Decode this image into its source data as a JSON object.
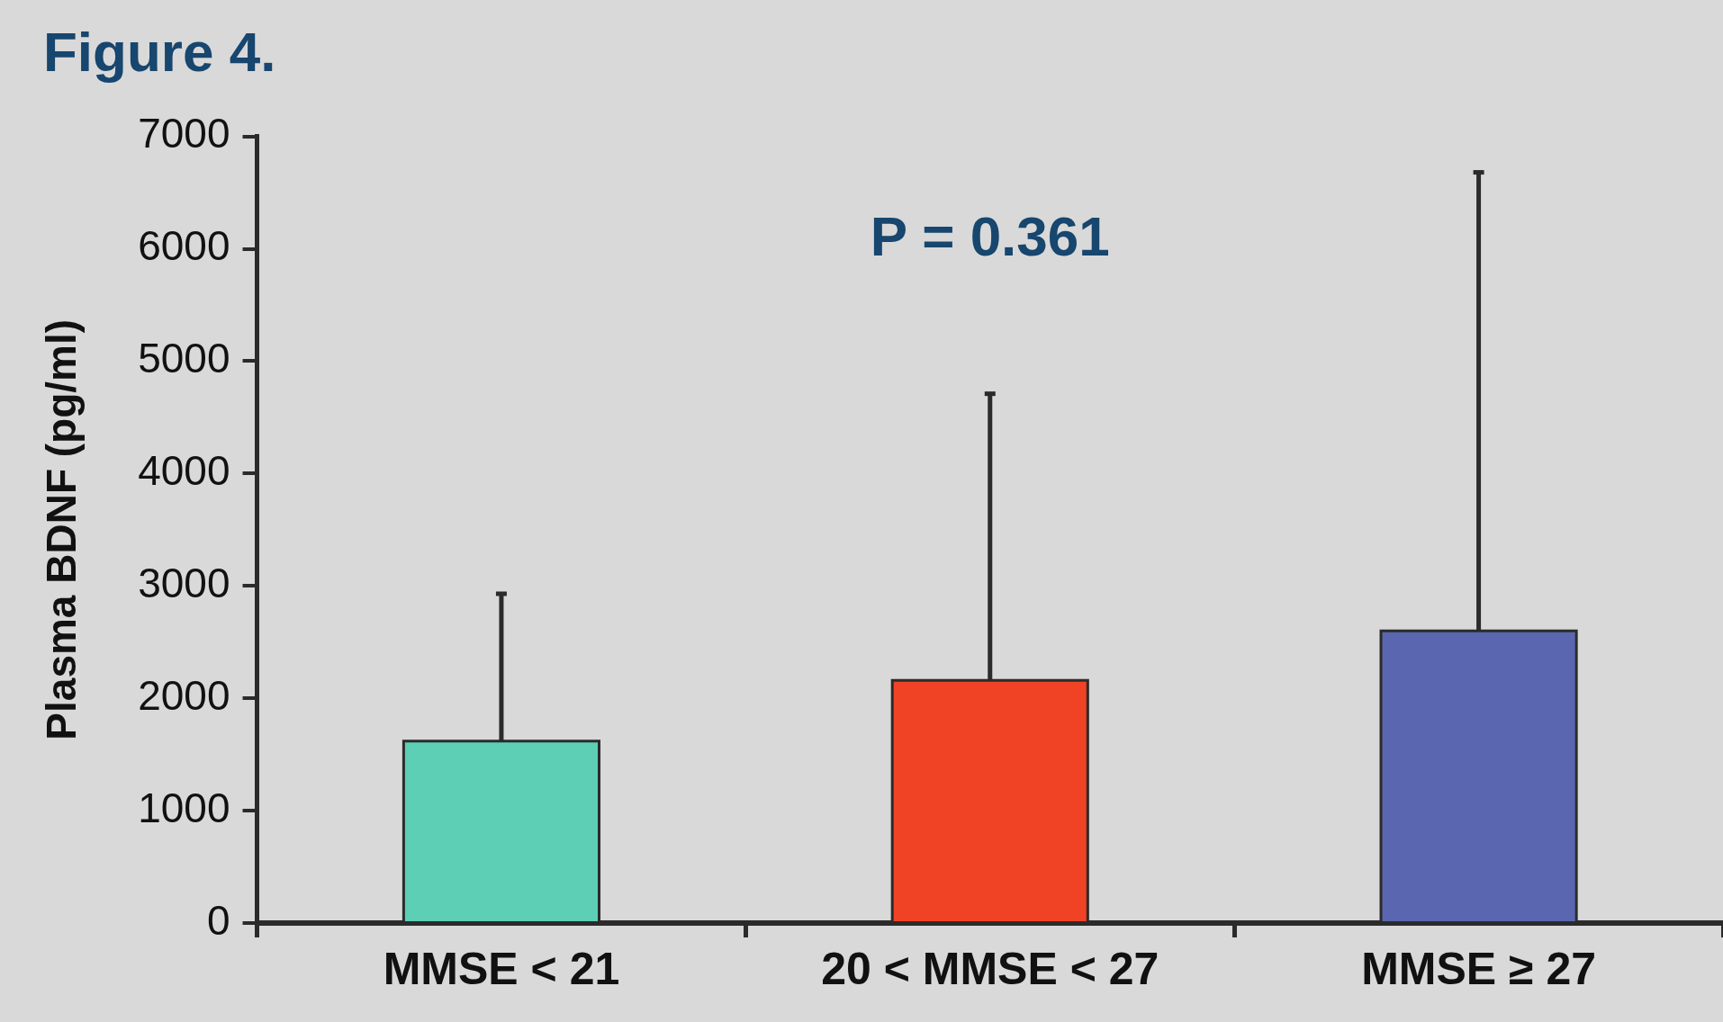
{
  "chart_data": {
    "type": "bar",
    "title": "Figure 4.",
    "ylabel": "Plasma BDNF (pg/ml)",
    "categories": [
      "MMSE < 21",
      "20 < MMSE < 27",
      "MMSE ≥ 27"
    ],
    "values": [
      1620,
      2160,
      2600
    ],
    "colors": [
      "#5ccfb4",
      "#f04326",
      "#5a67b0"
    ],
    "errors": [
      [
        1620,
        2930
      ],
      [
        2160,
        4710
      ],
      [
        2600,
        6680
      ]
    ],
    "ylim": [
      0,
      7000
    ],
    "yticks": [
      0,
      1000,
      2000,
      3000,
      4000,
      5000,
      6000,
      7000
    ],
    "grid": false,
    "legend": false,
    "annotations": [
      "P = 0.361"
    ]
  }
}
